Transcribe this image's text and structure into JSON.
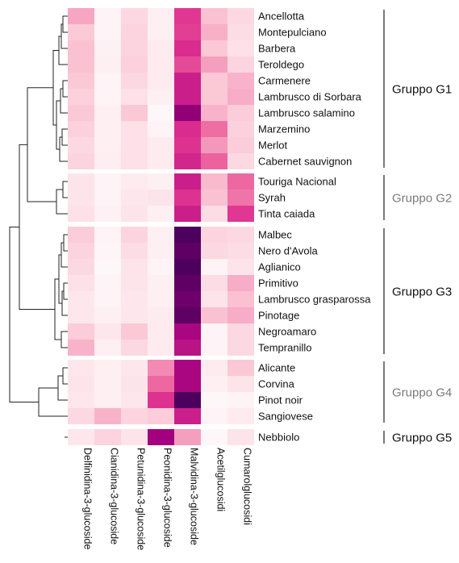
{
  "chart_data": {
    "type": "heatmap",
    "rows": [
      "Ancellotta",
      "Montepulciano",
      "Barbera",
      "Teroldego",
      "Carmenere",
      "Lambrusco di Sorbara",
      "Lambrusco salamino",
      "Marzemino",
      "Merlot",
      "Cabernet sauvignon",
      "Touriga Nacional",
      "Syrah",
      "Tinta caiada",
      "Malbec",
      "Nero d'Avola",
      "Aglianico",
      "Primitivo",
      "Lambrusco grasparossa",
      "Pinotage",
      "Negroamaro",
      "Tempranillo",
      "Alicante",
      "Corvina",
      "Pinot noir",
      "Sangiovese",
      "Nebbiolo"
    ],
    "columns": [
      "Delfinidina-3-glucoside",
      "Cianidina-3-glucoside",
      "Petunidina-3-glucoside",
      "Peonidina-3-glucoside",
      "Malvidina-3-glucoside",
      "Acetilglucosidi",
      "Cumarolglucosidi"
    ],
    "values": [
      [
        0.38,
        0.06,
        0.2,
        0.08,
        0.72,
        0.3,
        0.2
      ],
      [
        0.27,
        0.06,
        0.22,
        0.08,
        0.7,
        0.35,
        0.18
      ],
      [
        0.3,
        0.07,
        0.22,
        0.1,
        0.76,
        0.28,
        0.16
      ],
      [
        0.3,
        0.08,
        0.24,
        0.1,
        0.66,
        0.4,
        0.22
      ],
      [
        0.28,
        0.06,
        0.2,
        0.1,
        0.8,
        0.28,
        0.34
      ],
      [
        0.24,
        0.06,
        0.16,
        0.08,
        0.8,
        0.28,
        0.36
      ],
      [
        0.28,
        0.08,
        0.28,
        0.04,
        0.92,
        0.34,
        0.26
      ],
      [
        0.24,
        0.08,
        0.16,
        0.06,
        0.76,
        0.54,
        0.24
      ],
      [
        0.2,
        0.08,
        0.16,
        0.1,
        0.74,
        0.42,
        0.26
      ],
      [
        0.22,
        0.09,
        0.16,
        0.1,
        0.78,
        0.58,
        0.2
      ],
      [
        0.14,
        0.06,
        0.1,
        0.08,
        0.8,
        0.32,
        0.56
      ],
      [
        0.14,
        0.06,
        0.12,
        0.14,
        0.74,
        0.3,
        0.52
      ],
      [
        0.16,
        0.07,
        0.14,
        0.08,
        0.8,
        0.18,
        0.72
      ],
      [
        0.26,
        0.06,
        0.22,
        0.08,
        1.0,
        0.22,
        0.2
      ],
      [
        0.22,
        0.05,
        0.18,
        0.08,
        0.98,
        0.2,
        0.18
      ],
      [
        0.2,
        0.04,
        0.14,
        0.06,
        1.0,
        0.06,
        0.14
      ],
      [
        0.16,
        0.06,
        0.14,
        0.08,
        0.98,
        0.18,
        0.36
      ],
      [
        0.12,
        0.06,
        0.12,
        0.08,
        0.96,
        0.14,
        0.3
      ],
      [
        0.12,
        0.08,
        0.12,
        0.1,
        0.98,
        0.3,
        0.36
      ],
      [
        0.26,
        0.12,
        0.28,
        0.1,
        0.88,
        0.06,
        0.2
      ],
      [
        0.34,
        0.08,
        0.2,
        0.1,
        0.84,
        0.06,
        0.2
      ],
      [
        0.12,
        0.08,
        0.12,
        0.46,
        0.88,
        0.1,
        0.28
      ],
      [
        0.14,
        0.08,
        0.14,
        0.56,
        0.88,
        0.08,
        0.14
      ],
      [
        0.12,
        0.08,
        0.12,
        0.74,
        1.0,
        0.04,
        0.06
      ],
      [
        0.2,
        0.34,
        0.22,
        0.26,
        0.8,
        0.06,
        0.1
      ],
      [
        0.12,
        0.22,
        0.14,
        0.9,
        0.4,
        0.04,
        0.14
      ]
    ],
    "colors": {
      "low": "#ffffff",
      "mid1": "#fbc8d6",
      "mid2": "#ee6ba2",
      "mid3": "#dd2f8f",
      "high_a": "#a3007f",
      "high": "#4d005d"
    },
    "groups": [
      {
        "label": "Gruppo G1",
        "first_row": 0,
        "last_row": 9,
        "color": "#111111"
      },
      {
        "label": "Gruppo G2",
        "first_row": 10,
        "last_row": 12,
        "color": "#7a7a7a"
      },
      {
        "label": "Gruppo G3",
        "first_row": 13,
        "last_row": 20,
        "color": "#111111"
      },
      {
        "label": "Gruppo G4",
        "first_row": 21,
        "last_row": 24,
        "color": "#7a7a7a"
      },
      {
        "label": "Gruppo G5",
        "first_row": 25,
        "last_row": 25,
        "color": "#111111"
      }
    ],
    "dendrogram": "row clustering tree on the left",
    "legend": "none",
    "grid": false
  }
}
